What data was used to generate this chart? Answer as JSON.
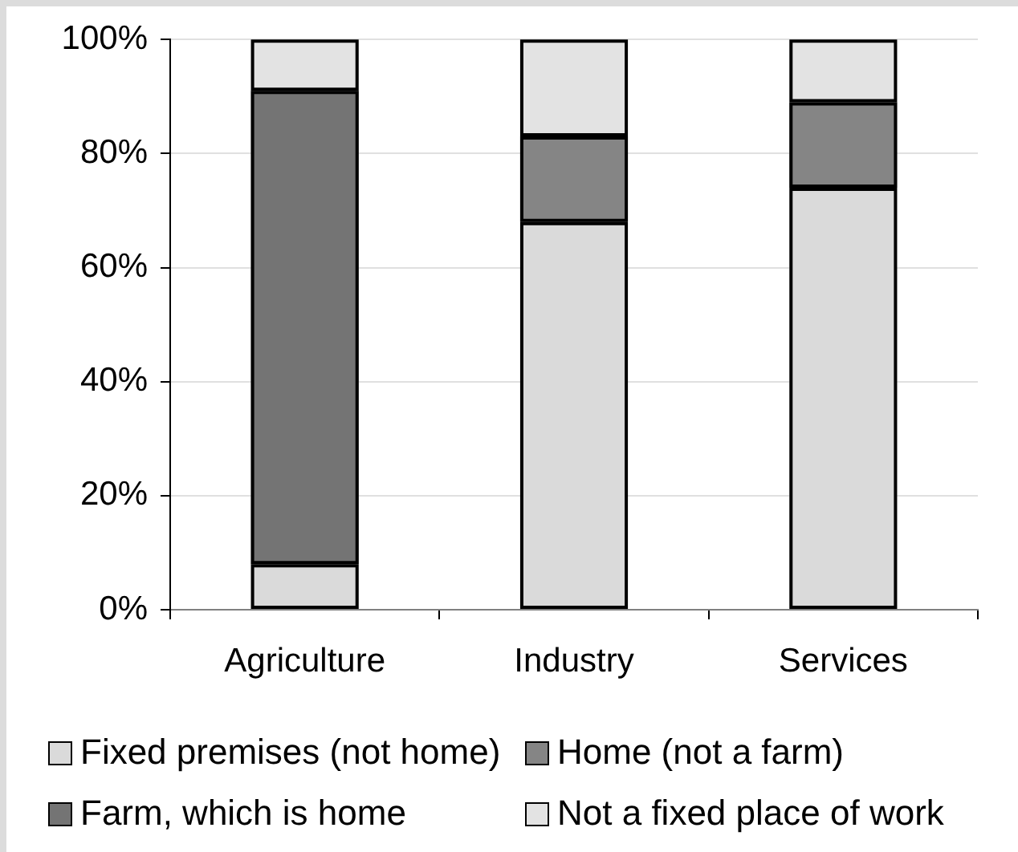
{
  "chart_data": {
    "type": "bar",
    "stacked": true,
    "categories": [
      "Agriculture",
      "Industry",
      "Services"
    ],
    "series": [
      {
        "name": "Fixed premises (not home)",
        "color": "#dadada",
        "values": [
          8,
          68,
          74
        ]
      },
      {
        "name": "Home (not a farm)",
        "color": "#858585",
        "values": [
          0,
          15,
          15
        ]
      },
      {
        "name": "Farm, which is home",
        "color": "#747474",
        "values": [
          83,
          0,
          0
        ]
      },
      {
        "name": "Not a fixed place of work",
        "color": "#e3e3e3",
        "values": [
          9,
          17,
          11
        ]
      }
    ],
    "ylim": [
      0,
      100
    ],
    "yticks": [
      {
        "value": 0,
        "label": "0%"
      },
      {
        "value": 20,
        "label": "20%"
      },
      {
        "value": 40,
        "label": "40%"
      },
      {
        "value": 60,
        "label": "60%"
      },
      {
        "value": 80,
        "label": "80%"
      },
      {
        "value": 100,
        "label": "100%"
      }
    ],
    "grid": "y",
    "legend": "bottom"
  }
}
